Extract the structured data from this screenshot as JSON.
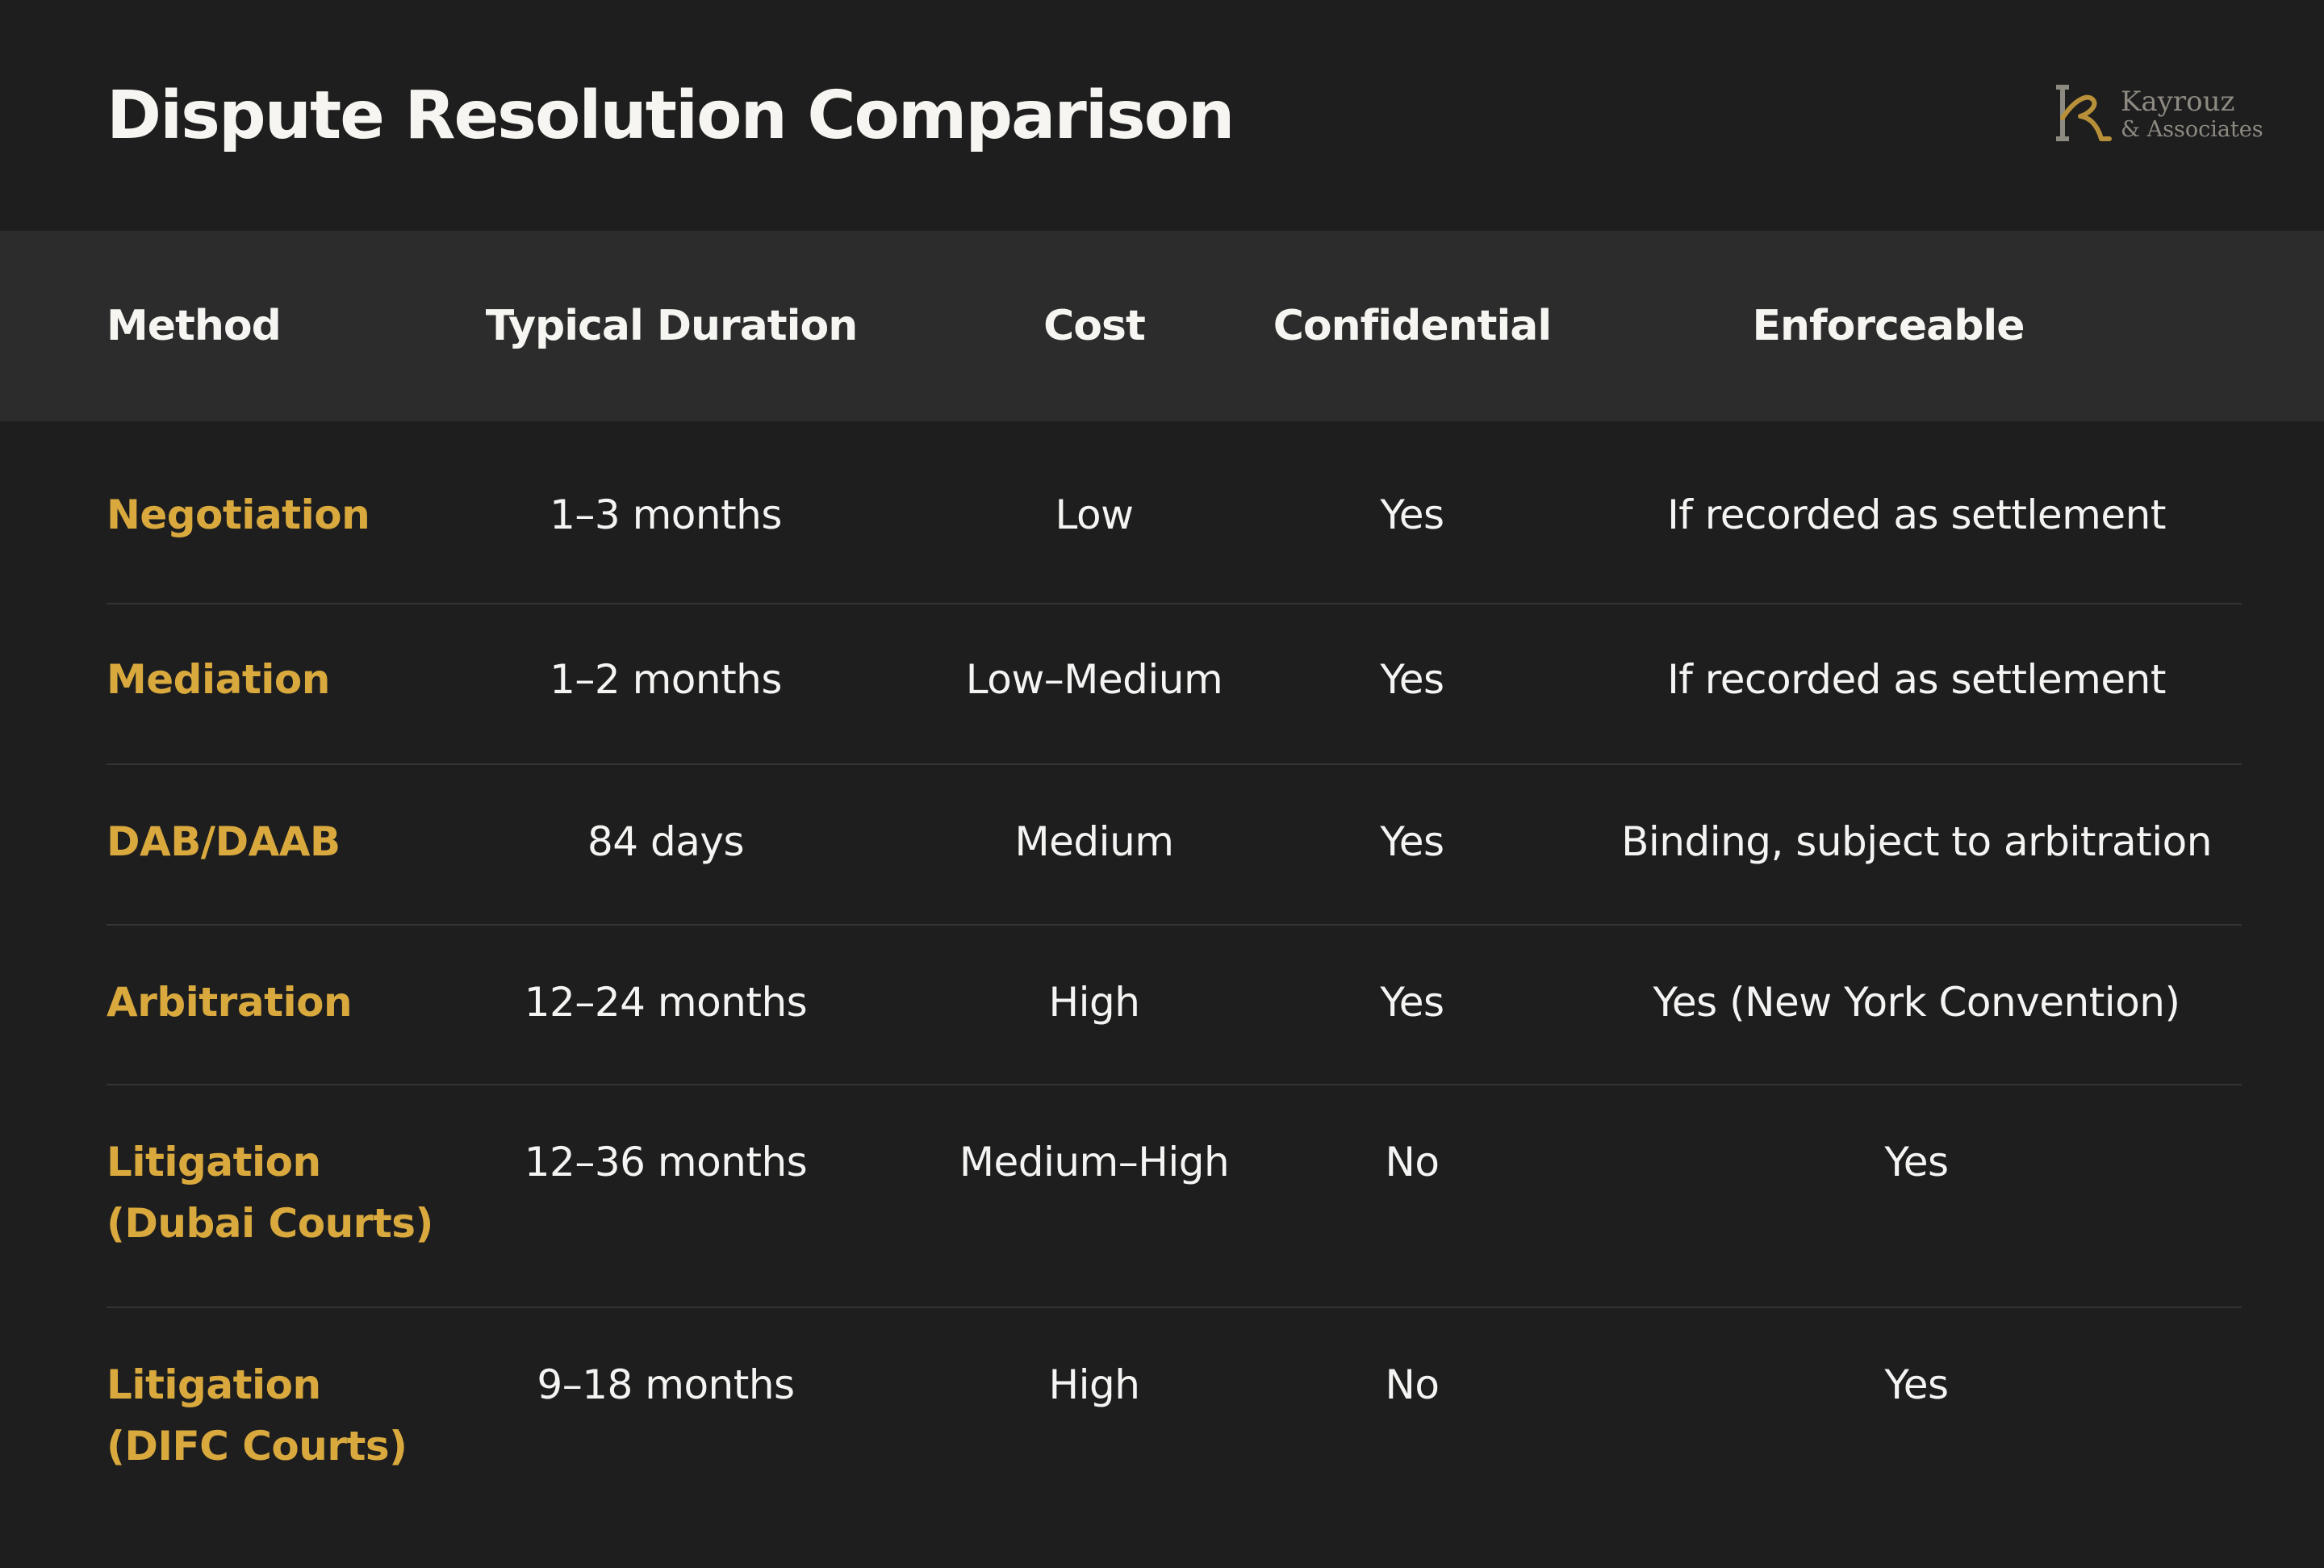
{
  "header": {
    "title": "Dispute Resolution Comparison",
    "logo": {
      "name": "Kayrouz",
      "subtitle": "& Associates"
    }
  },
  "table": {
    "columns": [
      "Method",
      "Typical Duration",
      "Cost",
      "Confidential",
      "Enforceable"
    ],
    "rows": [
      {
        "method": "Negotiation",
        "duration": "1–3 months",
        "cost": "Low",
        "confidential": "Yes",
        "enforceable": "If recorded as settlement"
      },
      {
        "method": "Mediation",
        "duration": "1–2 months",
        "cost": "Low–Medium",
        "confidential": "Yes",
        "enforceable": "If recorded as settlement"
      },
      {
        "method": "DAB/DAAB",
        "duration": "84 days",
        "cost": "Medium",
        "confidential": "Yes",
        "enforceable": "Binding, subject to arbitration"
      },
      {
        "method": "Arbitration",
        "duration": "12–24 months",
        "cost": "High",
        "confidential": "Yes",
        "enforceable": "Yes (New York Convention)"
      },
      {
        "method": "Litigation (Dubai Courts)",
        "duration": "12–36 months",
        "cost": "Medium–High",
        "confidential": "No",
        "enforceable": "Yes"
      },
      {
        "method": "Litigation (DIFC Courts)",
        "duration": "9–18 months",
        "cost": "High",
        "confidential": "No",
        "enforceable": "Yes"
      }
    ]
  },
  "colors": {
    "background": "#1e1e1e",
    "header_row": "#2c2c2c",
    "accent": "#d9a93e",
    "text": "#f4f4f2",
    "divider": "#343434",
    "logo": "#8d8a82"
  }
}
